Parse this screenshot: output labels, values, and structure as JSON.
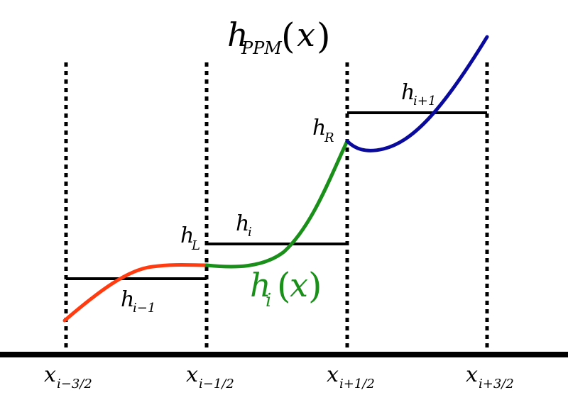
{
  "title": {
    "base": "h",
    "sub": "PPM",
    "open": "(",
    "arg": "x",
    "close": ")"
  },
  "axis_labels": [
    {
      "base": "x",
      "sub": "i−3/2"
    },
    {
      "base": "x",
      "sub": "i−1/2"
    },
    {
      "base": "x",
      "sub": "i+1/2"
    },
    {
      "base": "x",
      "sub": "i+3/2"
    }
  ],
  "cell_averages": [
    {
      "base": "h",
      "sub": "i−1"
    },
    {
      "base": "h",
      "sub": "i"
    },
    {
      "base": "h",
      "sub": "i+1"
    }
  ],
  "edge_values": [
    {
      "base": "h",
      "sub": "L"
    },
    {
      "base": "h",
      "sub": "R"
    }
  ],
  "curve_label": {
    "base": "h",
    "sub": "i",
    "open": "(",
    "arg": "x",
    "close": ")"
  },
  "colors": {
    "left_cell_curve": "#ff3b0f",
    "center_cell_curve": "#1a8f1a",
    "right_cell_curve": "#0a0a9c",
    "average_lines": "#000000",
    "interfaces": "#000000"
  }
}
